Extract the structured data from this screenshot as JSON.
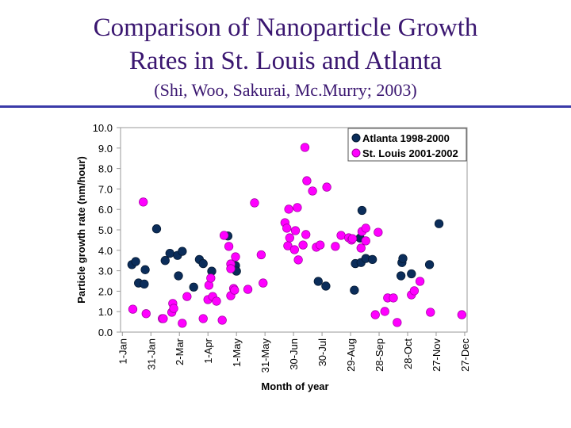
{
  "slide": {
    "title_line1": "Comparison of Nanoparticle Growth",
    "title_line2": "Rates in St. Louis and Atlanta",
    "citation": "(Shi, Woo, Sakurai, Mc.Murry; 2003)",
    "accent_color": "#3a3aa8"
  },
  "chart_data": {
    "type": "scatter",
    "xlabel": "Month of year",
    "ylabel": "Particle growth rate (nm/hour)",
    "ylim": [
      0,
      10
    ],
    "yticks": [
      "0.0",
      "1.0",
      "2.0",
      "3.0",
      "4.0",
      "5.0",
      "6.0",
      "7.0",
      "8.0",
      "9.0",
      "10.0"
    ],
    "xlim": [
      "01-01",
      "12-27"
    ],
    "xticks": [
      {
        "label": "1-Jan",
        "date": "01-01"
      },
      {
        "label": "31-Jan",
        "date": "01-31"
      },
      {
        "label": "2-Mar",
        "date": "03-02"
      },
      {
        "label": "1-Apr",
        "date": "04-01"
      },
      {
        "label": "1-May",
        "date": "05-01"
      },
      {
        "label": "31-May",
        "date": "05-31"
      },
      {
        "label": "30-Jun",
        "date": "06-30"
      },
      {
        "label": "30-Jul",
        "date": "07-30"
      },
      {
        "label": "29-Aug",
        "date": "08-29"
      },
      {
        "label": "28-Sep",
        "date": "09-28"
      },
      {
        "label": "28-Oct",
        "date": "10-28"
      },
      {
        "label": "27-Nov",
        "date": "11-27"
      },
      {
        "label": "27-Dec",
        "date": "12-27"
      }
    ],
    "grid": false,
    "legend_placement": "top-right",
    "series": [
      {
        "name": "Atlanta 1998-2000",
        "color": "#0b2d5a",
        "points": [
          [
            "01-11",
            3.3
          ],
          [
            "01-15",
            3.45
          ],
          [
            "01-18",
            2.4
          ],
          [
            "01-24",
            2.35
          ],
          [
            "01-25",
            3.05
          ],
          [
            "02-06",
            5.05
          ],
          [
            "02-15",
            3.5
          ],
          [
            "02-20",
            3.85
          ],
          [
            "02-28",
            3.75
          ],
          [
            "03-01",
            2.75
          ],
          [
            "03-05",
            3.95
          ],
          [
            "03-17",
            2.2
          ],
          [
            "03-23",
            3.55
          ],
          [
            "03-27",
            3.35
          ],
          [
            "04-05",
            2.98
          ],
          [
            "04-22",
            4.7
          ],
          [
            "04-30",
            3.25
          ],
          [
            "05-01",
            2.98
          ],
          [
            "07-26",
            2.48
          ],
          [
            "08-03",
            2.25
          ],
          [
            "09-02",
            2.05
          ],
          [
            "09-03",
            3.35
          ],
          [
            "09-08",
            4.6
          ],
          [
            "09-09",
            3.4
          ],
          [
            "09-10",
            5.95
          ],
          [
            "09-14",
            3.6
          ],
          [
            "09-21",
            3.55
          ],
          [
            "10-21",
            2.75
          ],
          [
            "10-22",
            3.4
          ],
          [
            "10-23",
            3.6
          ],
          [
            "11-01",
            2.85
          ],
          [
            "11-20",
            3.3
          ],
          [
            "11-30",
            5.3
          ]
        ]
      },
      {
        "name": "St. Louis 2001-2002",
        "color": "#ff00ff",
        "points": [
          [
            "01-12",
            1.12
          ],
          [
            "01-23",
            6.36
          ],
          [
            "01-26",
            0.9
          ],
          [
            "02-12",
            0.66
          ],
          [
            "02-13",
            0.66
          ],
          [
            "02-22",
            0.97
          ],
          [
            "02-23",
            1.4
          ],
          [
            "02-24",
            1.16
          ],
          [
            "03-05",
            0.43
          ],
          [
            "03-10",
            1.74
          ],
          [
            "03-27",
            0.66
          ],
          [
            "04-01",
            1.59
          ],
          [
            "04-02",
            2.29
          ],
          [
            "04-04",
            2.64
          ],
          [
            "04-06",
            1.74
          ],
          [
            "04-10",
            1.51
          ],
          [
            "04-16",
            0.58
          ],
          [
            "04-18",
            4.73
          ],
          [
            "04-23",
            4.19
          ],
          [
            "04-25",
            3.33
          ],
          [
            "04-25",
            3.1
          ],
          [
            "04-25",
            1.78
          ],
          [
            "04-28",
            2.13
          ],
          [
            "04-29",
            2.05
          ],
          [
            "04-30",
            3.68
          ],
          [
            "05-13",
            2.09
          ],
          [
            "05-20",
            6.32
          ],
          [
            "05-27",
            3.78
          ],
          [
            "05-29",
            2.4
          ],
          [
            "06-21",
            5.35
          ],
          [
            "06-23",
            5.08
          ],
          [
            "06-24",
            4.22
          ],
          [
            "06-25",
            6.01
          ],
          [
            "06-26",
            4.61
          ],
          [
            "07-01",
            4.03
          ],
          [
            "07-02",
            4.96
          ],
          [
            "07-04",
            6.09
          ],
          [
            "07-05",
            3.53
          ],
          [
            "07-10",
            4.26
          ],
          [
            "07-12",
            9.03
          ],
          [
            "07-13",
            4.77
          ],
          [
            "07-14",
            7.4
          ],
          [
            "07-20",
            6.9
          ],
          [
            "07-24",
            4.15
          ],
          [
            "07-28",
            4.26
          ],
          [
            "08-04",
            7.09
          ],
          [
            "08-13",
            4.19
          ],
          [
            "08-19",
            4.73
          ],
          [
            "08-27",
            4.61
          ],
          [
            "08-30",
            4.5
          ],
          [
            "08-31",
            4.57
          ],
          [
            "09-09",
            4.11
          ],
          [
            "09-10",
            4.92
          ],
          [
            "09-14",
            5.08
          ],
          [
            "09-14",
            4.46
          ],
          [
            "09-24",
            0.85
          ],
          [
            "09-27",
            4.88
          ],
          [
            "10-04",
            1.01
          ],
          [
            "10-07",
            1.67
          ],
          [
            "10-13",
            1.67
          ],
          [
            "10-17",
            0.47
          ],
          [
            "11-01",
            1.82
          ],
          [
            "11-04",
            2.02
          ],
          [
            "11-10",
            2.48
          ],
          [
            "11-21",
            0.97
          ],
          [
            "12-24",
            0.85
          ]
        ]
      }
    ]
  }
}
